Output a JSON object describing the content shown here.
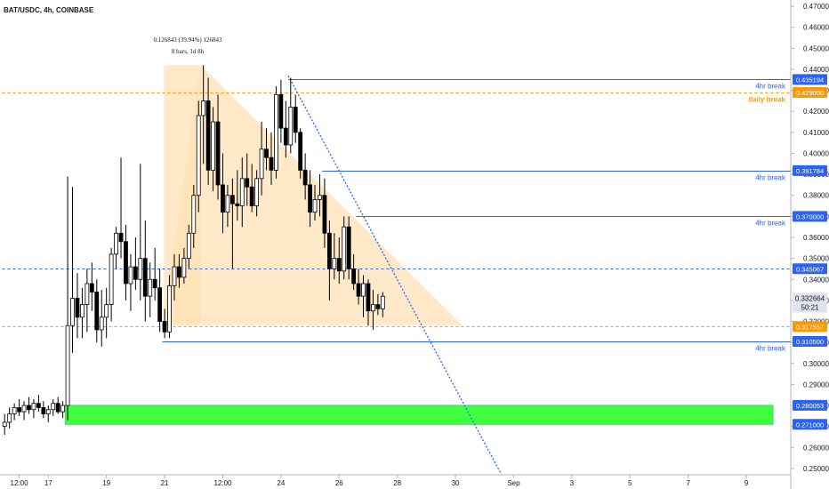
{
  "chart_data": {
    "type": "candlestick",
    "title": "BAT/USDC, 4h, COINBASE",
    "colors": {
      "up_candle": "#ffffff",
      "down_candle": "#000000",
      "wick": "#000000",
      "blue_line": "#2962ff",
      "orange_line": "#ff9800",
      "green_zone": "#00ff00",
      "triangle_fill": "#ffe0b2",
      "price_tag_blue": "#2962ff",
      "price_tag_orange": "#ff9800",
      "price_tag_grey": "#e0e3eb"
    },
    "y_axis": {
      "ticks": [
        "0.470000",
        "0.460000",
        "0.450000",
        "0.440000",
        "0.430000",
        "0.420000",
        "0.410000",
        "0.400000",
        "0.390000",
        "0.380000",
        "0.370000",
        "0.360000",
        "0.350000",
        "0.340000",
        "0.330000",
        "0.320000",
        "0.310000",
        "0.300000",
        "0.290000",
        "0.280000",
        "0.270000",
        "0.260000",
        "0.250000"
      ],
      "tick_values": [
        0.47,
        0.46,
        0.45,
        0.44,
        0.43,
        0.42,
        0.41,
        0.4,
        0.39,
        0.38,
        0.37,
        0.36,
        0.35,
        0.34,
        0.33,
        0.32,
        0.31,
        0.3,
        0.29,
        0.28,
        0.27,
        0.26,
        0.25
      ],
      "range": [
        0.247,
        0.473
      ]
    },
    "x_axis": {
      "ticks": [
        "12:00",
        "17",
        "19",
        "21",
        "12:00",
        "24",
        "26",
        "28",
        "30",
        "Sep",
        "3",
        "5",
        "7",
        "9"
      ],
      "tick_positions_bars": [
        3,
        9,
        21,
        33,
        45,
        57,
        69,
        81,
        93,
        105,
        117,
        129,
        141,
        153
      ],
      "total_bars": 165
    },
    "levels": [
      {
        "price": 0.435194,
        "tag": "0.435194",
        "label": "4hr break",
        "color": "#2962ff",
        "style": "solid",
        "start_bar": 59
      },
      {
        "price": 0.429,
        "tag": "0.429000",
        "label": "daily break",
        "color": "#ff9800",
        "style": "dashed",
        "start_bar": 0
      },
      {
        "price": 0.391784,
        "tag": "0.391784",
        "label": "4hr break",
        "color": "#2962ff",
        "style": "solid",
        "start_bar": 66
      },
      {
        "price": 0.37,
        "tag": "0.370000",
        "label": "4hr break",
        "color": "#2962ff",
        "style": "solid",
        "start_bar": 73
      },
      {
        "price": 0.345067,
        "tag": "0.345067",
        "label": "",
        "color": "#2962ff",
        "style": "dashed",
        "start_bar": 0
      },
      {
        "price": 0.317557,
        "tag": "0.317557",
        "label": "",
        "color": "#ff9800",
        "style": "dashed",
        "start_bar": 0
      },
      {
        "price": 0.3105,
        "tag": "0.310500",
        "label": "4hr break",
        "color": "#2962ff",
        "style": "solid",
        "start_bar": 33
      }
    ],
    "current_price": {
      "tag": "0.332664",
      "countdown": "50:21"
    },
    "zone": {
      "top": 0.280053,
      "bottom": 0.271,
      "top_tag": "0.280053",
      "bottom_tag": "0.271000",
      "start_bar": 13,
      "end_bar": 159
    },
    "measure": {
      "line1": "0.126843 (39.94%) 126843",
      "line2": "8 bars, 1d 8h"
    },
    "candles": [
      [
        0.27,
        0.276,
        0.266,
        0.272
      ],
      [
        0.272,
        0.279,
        0.269,
        0.276
      ],
      [
        0.276,
        0.281,
        0.273,
        0.279
      ],
      [
        0.279,
        0.283,
        0.275,
        0.277
      ],
      [
        0.277,
        0.282,
        0.273,
        0.28
      ],
      [
        0.28,
        0.284,
        0.276,
        0.278
      ],
      [
        0.278,
        0.283,
        0.274,
        0.281
      ],
      [
        0.281,
        0.285,
        0.277,
        0.279
      ],
      [
        0.279,
        0.282,
        0.274,
        0.276
      ],
      [
        0.276,
        0.28,
        0.272,
        0.278
      ],
      [
        0.278,
        0.283,
        0.275,
        0.281
      ],
      [
        0.281,
        0.284,
        0.276,
        0.277
      ],
      [
        0.277,
        0.282,
        0.274,
        0.28
      ],
      [
        0.28,
        0.389,
        0.273,
        0.318
      ],
      [
        0.318,
        0.384,
        0.305,
        0.331
      ],
      [
        0.331,
        0.343,
        0.312,
        0.322
      ],
      [
        0.322,
        0.336,
        0.312,
        0.328
      ],
      [
        0.328,
        0.345,
        0.315,
        0.338
      ],
      [
        0.338,
        0.348,
        0.325,
        0.334
      ],
      [
        0.334,
        0.34,
        0.31,
        0.316
      ],
      [
        0.316,
        0.335,
        0.308,
        0.322
      ],
      [
        0.322,
        0.336,
        0.312,
        0.328
      ],
      [
        0.328,
        0.355,
        0.32,
        0.352
      ],
      [
        0.352,
        0.365,
        0.345,
        0.362
      ],
      [
        0.362,
        0.398,
        0.35,
        0.358
      ],
      [
        0.358,
        0.366,
        0.33,
        0.338
      ],
      [
        0.338,
        0.352,
        0.325,
        0.346
      ],
      [
        0.346,
        0.36,
        0.335,
        0.34
      ],
      [
        0.34,
        0.395,
        0.33,
        0.35
      ],
      [
        0.35,
        0.368,
        0.32,
        0.332
      ],
      [
        0.332,
        0.348,
        0.322,
        0.34
      ],
      [
        0.34,
        0.355,
        0.33,
        0.336
      ],
      [
        0.336,
        0.345,
        0.315,
        0.32
      ],
      [
        0.32,
        0.326,
        0.312,
        0.315
      ],
      [
        0.315,
        0.342,
        0.312,
        0.337
      ],
      [
        0.337,
        0.352,
        0.33,
        0.346
      ],
      [
        0.346,
        0.352,
        0.336,
        0.341
      ],
      [
        0.341,
        0.355,
        0.338,
        0.35
      ],
      [
        0.35,
        0.366,
        0.345,
        0.362
      ],
      [
        0.362,
        0.385,
        0.355,
        0.38
      ],
      [
        0.38,
        0.425,
        0.372,
        0.418
      ],
      [
        0.418,
        0.442,
        0.395,
        0.425
      ],
      [
        0.425,
        0.436,
        0.385,
        0.392
      ],
      [
        0.392,
        0.422,
        0.382,
        0.415
      ],
      [
        0.415,
        0.428,
        0.378,
        0.385
      ],
      [
        0.385,
        0.4,
        0.362,
        0.372
      ],
      [
        0.372,
        0.385,
        0.365,
        0.38
      ],
      [
        0.38,
        0.388,
        0.345,
        0.376
      ],
      [
        0.376,
        0.392,
        0.368,
        0.375
      ],
      [
        0.375,
        0.398,
        0.365,
        0.388
      ],
      [
        0.388,
        0.4,
        0.375,
        0.384
      ],
      [
        0.384,
        0.395,
        0.372,
        0.375
      ],
      [
        0.375,
        0.392,
        0.37,
        0.388
      ],
      [
        0.388,
        0.415,
        0.38,
        0.402
      ],
      [
        0.402,
        0.412,
        0.392,
        0.398
      ],
      [
        0.398,
        0.41,
        0.385,
        0.392
      ],
      [
        0.392,
        0.432,
        0.388,
        0.428
      ],
      [
        0.428,
        0.435,
        0.405,
        0.412
      ],
      [
        0.412,
        0.425,
        0.398,
        0.404
      ],
      [
        0.404,
        0.436,
        0.4,
        0.422
      ],
      [
        0.422,
        0.428,
        0.405,
        0.41
      ],
      [
        0.41,
        0.412,
        0.388,
        0.392
      ],
      [
        0.392,
        0.4,
        0.378,
        0.385
      ],
      [
        0.385,
        0.392,
        0.365,
        0.372
      ],
      [
        0.372,
        0.385,
        0.368,
        0.378
      ],
      [
        0.378,
        0.39,
        0.37,
        0.38
      ],
      [
        0.38,
        0.388,
        0.355,
        0.362
      ],
      [
        0.362,
        0.368,
        0.33,
        0.345
      ],
      [
        0.345,
        0.362,
        0.34,
        0.35
      ],
      [
        0.35,
        0.36,
        0.338,
        0.344
      ],
      [
        0.344,
        0.37,
        0.34,
        0.365
      ],
      [
        0.365,
        0.37,
        0.34,
        0.345
      ],
      [
        0.345,
        0.352,
        0.335,
        0.338
      ],
      [
        0.338,
        0.345,
        0.328,
        0.332
      ],
      [
        0.332,
        0.342,
        0.322,
        0.338
      ],
      [
        0.338,
        0.34,
        0.318,
        0.325
      ],
      [
        0.325,
        0.335,
        0.316,
        0.328
      ],
      [
        0.328,
        0.333,
        0.323,
        0.326
      ],
      [
        0.326,
        0.334,
        0.322,
        0.332
      ]
    ]
  }
}
